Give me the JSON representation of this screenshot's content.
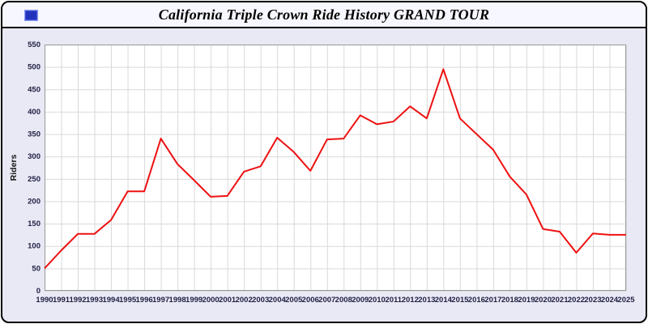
{
  "window": {
    "title": "California Triple Crown Ride History GRAND TOUR",
    "icon": "blue-window-icon"
  },
  "colors": {
    "window_bg": "#e9e9f6",
    "titlebar_bg": "#f7f7ff",
    "window_border": "#000000",
    "plot_bg": "#ffffff",
    "grid": "#d9d9d9",
    "plot_border": "#999999",
    "line": "#ee1111",
    "tick_label": "#222244",
    "axis_label": "#111111"
  },
  "chart_data": {
    "type": "line",
    "title": "California Triple Crown Ride History GRAND TOUR",
    "xlabel": "",
    "ylabel": "Riders",
    "ylim": [
      0,
      550
    ],
    "ytick_step": 50,
    "grid": true,
    "legend_position": "none",
    "categories": [
      "1990",
      "1991",
      "1992",
      "1993",
      "1994",
      "1995",
      "1996",
      "1997",
      "1998",
      "1999",
      "2000",
      "2001",
      "2002",
      "2003",
      "2004",
      "2005",
      "2006",
      "2007",
      "2008",
      "2009",
      "2010",
      "2011",
      "2012",
      "2013",
      "2014",
      "2015",
      "2016",
      "2017",
      "2018",
      "2019",
      "2020",
      "2021",
      "2022",
      "2023",
      "2024",
      "2025"
    ],
    "series": [
      {
        "name": "Riders",
        "values": [
          50,
          90,
          127,
          127,
          158,
          222,
          222,
          340,
          283,
          247,
          210,
          212,
          266,
          278,
          342,
          310,
          268,
          338,
          340,
          392,
          372,
          378,
          412,
          385,
          495,
          385,
          350,
          315,
          255,
          215,
          138,
          132,
          85,
          128,
          125,
          125
        ]
      }
    ]
  }
}
